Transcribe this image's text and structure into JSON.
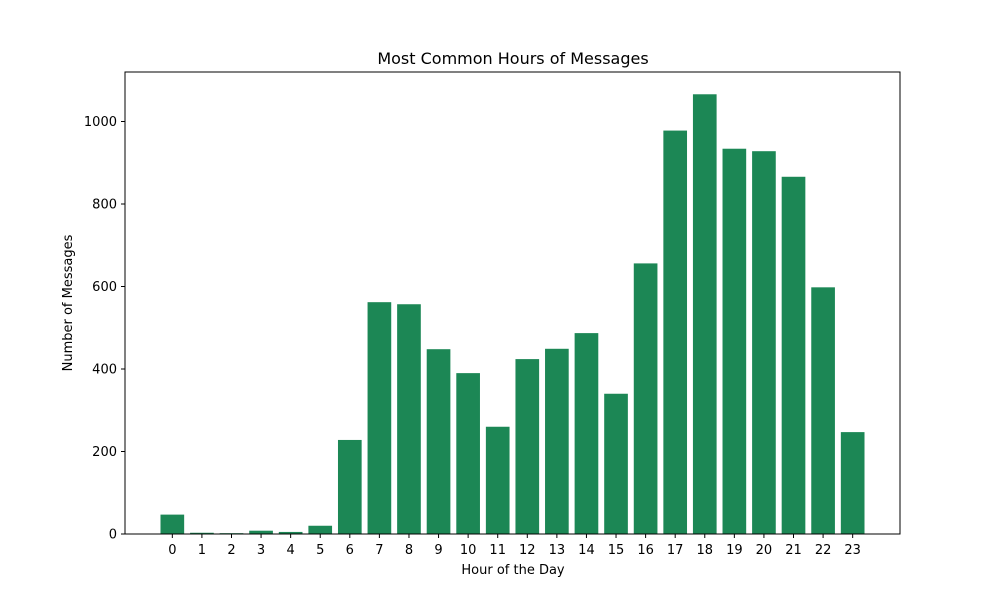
{
  "chart_data": {
    "type": "bar",
    "title": "Most Common Hours of Messages",
    "xlabel": "Hour of the Day",
    "ylabel": "Number of Messages",
    "categories": [
      "0",
      "1",
      "2",
      "3",
      "4",
      "5",
      "6",
      "7",
      "8",
      "9",
      "10",
      "11",
      "12",
      "13",
      "14",
      "15",
      "16",
      "17",
      "18",
      "19",
      "20",
      "21",
      "22",
      "23"
    ],
    "values": [
      47,
      3,
      2,
      8,
      5,
      20,
      228,
      562,
      557,
      448,
      390,
      260,
      424,
      449,
      487,
      340,
      656,
      978,
      1066,
      934,
      928,
      866,
      598,
      247
    ],
    "ylim": [
      0,
      1120
    ],
    "yticks": [
      0,
      200,
      400,
      600,
      800,
      1000
    ],
    "grid": false,
    "bar_color": "#1c8755"
  }
}
